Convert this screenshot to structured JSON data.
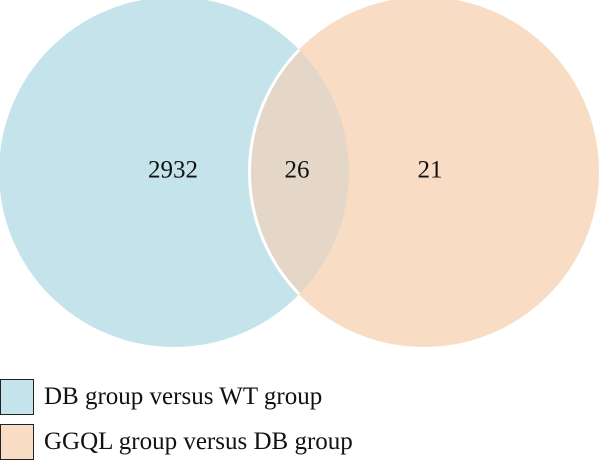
{
  "diagram": {
    "type": "venn",
    "sets": [
      {
        "name": "DB group versus WT group",
        "count_only": "2932",
        "color": "#c5e3eb"
      },
      {
        "name": "GGQL group versus DB group",
        "count_only": "21",
        "color": "#f8dcc3"
      }
    ],
    "intersection": {
      "count": "26",
      "color": "#e5d7c8"
    }
  }
}
